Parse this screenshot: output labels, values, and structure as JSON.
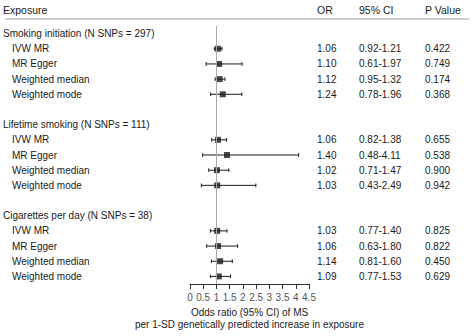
{
  "chart_data": {
    "type": "forest",
    "columns": [
      "Exposure",
      "OR",
      "95% CI",
      "P Value"
    ],
    "groups": [
      {
        "label": "Smoking initiation (N SNPs = 297)",
        "categories": [
          "IVW MR",
          "MR Egger",
          "Weighted median",
          "Weighted mode"
        ],
        "values": [
          1.06,
          1.1,
          1.12,
          1.24
        ],
        "value_labels": [
          "1.06",
          "1.10",
          "1.12",
          "1.24"
        ],
        "ci_lo": [
          0.92,
          0.61,
          0.95,
          0.78
        ],
        "ci_hi": [
          1.21,
          1.97,
          1.32,
          1.96
        ],
        "ci_labels": [
          "0.92-1.21",
          "0.61-1.97",
          "0.95-1.32",
          "0.78-1.96"
        ],
        "p_values": [
          "0.422",
          "0.749",
          "0.174",
          "0.368"
        ]
      },
      {
        "label": "Lifetime smoking (N SNPs = 111)",
        "categories": [
          "IVW MR",
          "MR Egger",
          "Weighted median",
          "Weighted mode"
        ],
        "values": [
          1.06,
          1.4,
          1.02,
          1.03
        ],
        "value_labels": [
          "1.06",
          "1.40",
          "1.02",
          "1.03"
        ],
        "ci_lo": [
          0.82,
          0.48,
          0.71,
          0.43
        ],
        "ci_hi": [
          1.38,
          4.11,
          1.47,
          2.49
        ],
        "ci_labels": [
          "0.82-1.38",
          "0.48-4.11",
          "0.71-1.47",
          "0.43-2.49"
        ],
        "p_values": [
          "0.655",
          "0.538",
          "0.900",
          "0.942"
        ]
      },
      {
        "label": "Cigarettes per day (N SNPs = 38)",
        "categories": [
          "IVW MR",
          "MR Egger",
          "Weighted median",
          "Weighted mode"
        ],
        "values": [
          1.03,
          1.06,
          1.14,
          1.09
        ],
        "value_labels": [
          "1.03",
          "1.06",
          "1.14",
          "1.09"
        ],
        "ci_lo": [
          0.77,
          0.63,
          0.81,
          0.77
        ],
        "ci_hi": [
          1.4,
          1.8,
          1.6,
          1.53
        ],
        "ci_labels": [
          "0.77-1.40",
          "0.63-1.80",
          "0.81-1.60",
          "0.77-1.53"
        ],
        "p_values": [
          "0.825",
          "0.822",
          "0.450",
          "0.629"
        ]
      }
    ],
    "xlim": [
      0,
      4.5
    ],
    "xticks": [
      0,
      0.5,
      1,
      1.5,
      2,
      2.5,
      3,
      3.5,
      4,
      4.5
    ],
    "xlabel": "Odds ratio (95% CI) of MS\nper 1-SD genetically predicted increase in exposure",
    "ref_line": 1,
    "color": "#1a1a1a",
    "marker": "square",
    "grid": false
  }
}
